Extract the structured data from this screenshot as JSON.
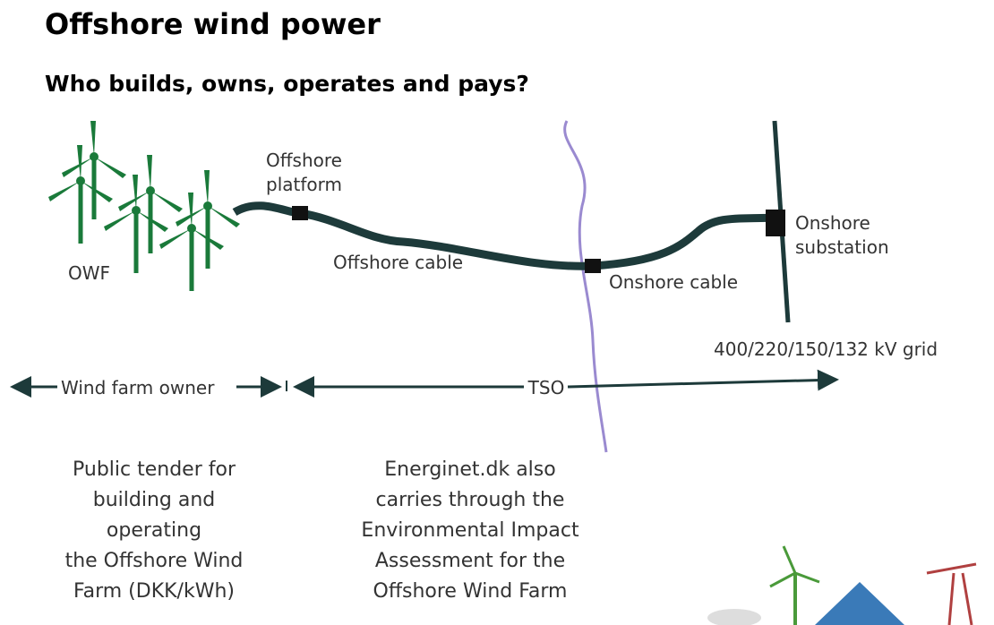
{
  "header": {
    "title": "Offshore wind power",
    "subtitle": "Who builds, owns, operates and pays?"
  },
  "labels": {
    "owf": "OWF",
    "platform": [
      "Offshore",
      "platform"
    ],
    "offshore_cable": "Offshore cable",
    "onshore_cable": "Onshore cable",
    "substation": [
      "Onshore",
      "substation"
    ],
    "grid": "400/220/150/132 kV grid"
  },
  "roles": {
    "owner": "Wind farm owner",
    "tso": "TSO"
  },
  "notes": [
    [
      "Public tender for",
      "building and",
      "operating",
      "the Offshore Wind",
      "Farm (DKK/kWh)"
    ],
    [
      "Energinet.dk also",
      "carries through the",
      "Environmental Impact",
      "Assessment for the",
      "Offshore Wind Farm"
    ]
  ]
}
